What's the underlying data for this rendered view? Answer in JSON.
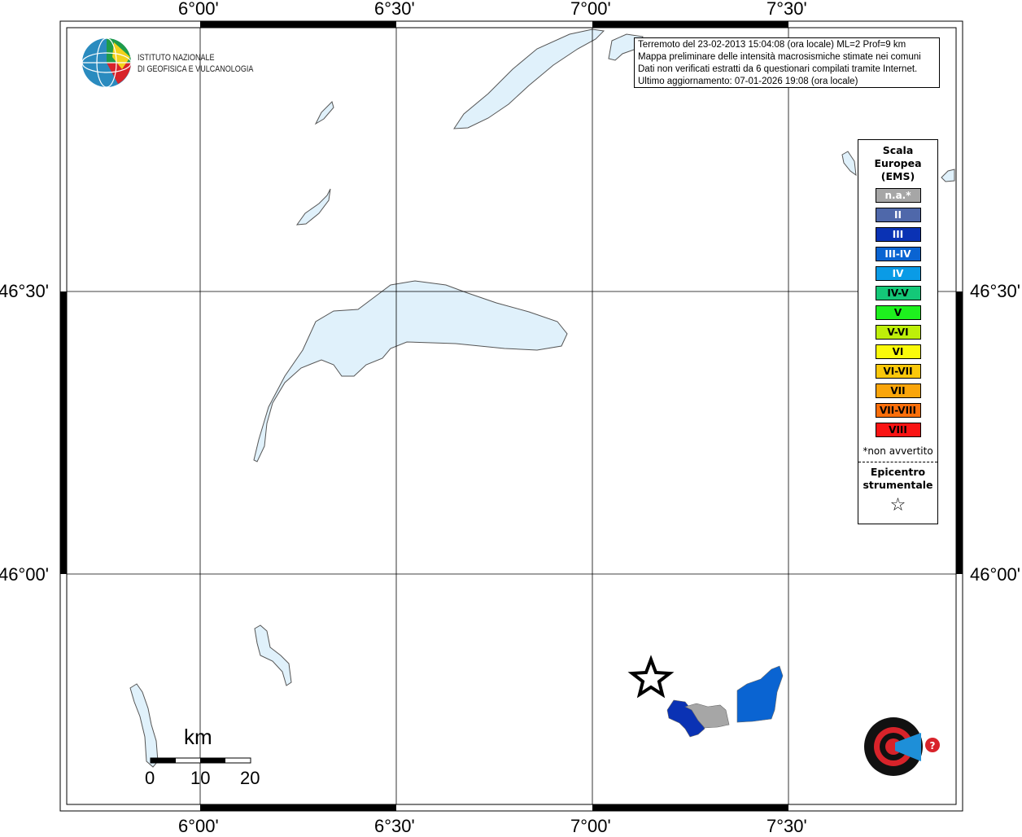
{
  "map": {
    "lon_labels": [
      "6°00'",
      "6°30'",
      "7°00'",
      "7°30'"
    ],
    "lat_labels": [
      "46°30'",
      "46°00'"
    ],
    "land_color": "#ffffff",
    "water_color": "#e0f1fb",
    "grid": true
  },
  "info_box": {
    "line1": "Terremoto del 23-02-2013 15:04:08 (ora locale) ML=2 Prof=9 km",
    "line2": "Mappa preliminare delle intensità macrosismiche stimate nei comuni",
    "line3": "Dati non verificati estratti da 6 questionari compilati tramite Internet.",
    "line4": "Ultimo aggiornamento: 07-01-2026 19:08 (ora locale)"
  },
  "legend": {
    "title_line1": "Scala",
    "title_line2": "Europea",
    "title_line3": "(EMS)",
    "items": [
      {
        "label": "n.a.*",
        "color": "#a6a6a6",
        "text_color": "#ffffff"
      },
      {
        "label": "II",
        "color": "#4f68aa",
        "text_color": "#ffffff"
      },
      {
        "label": "III",
        "color": "#0a32b4",
        "text_color": "#ffffff"
      },
      {
        "label": "III-IV",
        "color": "#0a64d2",
        "text_color": "#ffffff"
      },
      {
        "label": "IV",
        "color": "#0a9be6",
        "text_color": "#ffffff"
      },
      {
        "label": "IV-V",
        "color": "#14c878",
        "text_color": "#000000"
      },
      {
        "label": "V",
        "color": "#1ef01e",
        "text_color": "#000000"
      },
      {
        "label": "V-VI",
        "color": "#beef0a",
        "text_color": "#000000"
      },
      {
        "label": "VI",
        "color": "#fafa0a",
        "text_color": "#000000"
      },
      {
        "label": "VI-VII",
        "color": "#fac80a",
        "text_color": "#000000"
      },
      {
        "label": "VII",
        "color": "#faa50a",
        "text_color": "#000000"
      },
      {
        "label": "VII-VIII",
        "color": "#fa6e0a",
        "text_color": "#000000"
      },
      {
        "label": "VIII",
        "color": "#fa1414",
        "text_color": "#000000"
      }
    ],
    "note": "*non avvertito",
    "epicenter_line1": "Epicentro",
    "epicenter_line2": "strumentale",
    "epicenter_symbol": "☆"
  },
  "scale_bar": {
    "unit": "km",
    "labels": [
      "0",
      "10",
      "20"
    ]
  },
  "logos": {
    "ingv_line1": "ISTITUTO NAZIONALE",
    "ingv_line2": "DI GEOFISICA E VULCANOLOGIA",
    "hsit": "www.haisentitoilterremoto.it"
  },
  "municipalities": [
    {
      "intensity": "III",
      "color": "#0a32b4"
    },
    {
      "intensity": "n.a.*",
      "color": "#a6a6a6"
    },
    {
      "intensity": "III-IV",
      "color": "#0a64d2"
    }
  ]
}
